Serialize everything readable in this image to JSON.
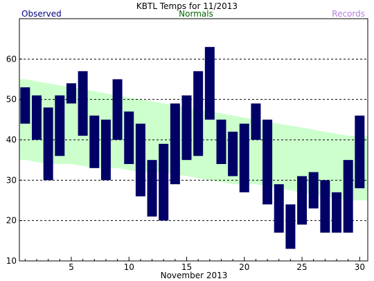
{
  "chart_data": {
    "type": "bar",
    "title": "KBTL Temps for 11/2013",
    "xlabel": "November 2013",
    "ylabel": "",
    "xlim": [
      1,
      30
    ],
    "ylim": [
      10,
      70
    ],
    "yticks": [
      10,
      20,
      30,
      40,
      50,
      60
    ],
    "xticks": [
      5,
      10,
      15,
      20,
      25,
      30
    ],
    "grid": "horizontal dashed at 20, 30, 40, 50, 60",
    "legend": [
      {
        "label": "Observed",
        "color": "#000080",
        "position": "top-left"
      },
      {
        "label": "Normals",
        "color": "#006400",
        "position": "top-center"
      },
      {
        "label": "Records",
        "color": "#b57edc",
        "position": "top-right"
      }
    ],
    "colors": {
      "observed": "#000066",
      "normals": "#ccffcc",
      "grid": "#000000"
    },
    "series": [
      {
        "name": "Observed",
        "days": [
          1,
          2,
          3,
          4,
          5,
          6,
          7,
          8,
          9,
          10,
          11,
          12,
          13,
          14,
          15,
          16,
          17,
          18,
          19,
          20,
          21,
          22,
          23,
          24,
          25,
          26,
          27,
          28,
          29,
          30
        ],
        "high": [
          53,
          51,
          48,
          51,
          54,
          57,
          46,
          45,
          55,
          47,
          44,
          35,
          39,
          49,
          51,
          57,
          63,
          45,
          42,
          44,
          49,
          45,
          29,
          24,
          31,
          32,
          30,
          27,
          35,
          46
        ],
        "low": [
          44,
          40,
          30,
          36,
          49,
          41,
          33,
          30,
          40,
          34,
          26,
          21,
          20,
          29,
          35,
          36,
          45,
          34,
          31,
          27,
          40,
          24,
          17,
          13,
          19,
          23,
          17,
          17,
          17,
          28
        ]
      },
      {
        "name": "Normals",
        "days": [
          1,
          3,
          5,
          7,
          9,
          11,
          13,
          15,
          17,
          19,
          21,
          23,
          25,
          27,
          29,
          30
        ],
        "high": [
          55,
          54,
          53,
          52,
          51,
          50,
          49,
          48,
          47,
          46,
          45,
          44,
          43,
          42,
          41,
          41
        ],
        "low": [
          35,
          34,
          34,
          33,
          33,
          32,
          32,
          31,
          30,
          29,
          29,
          28,
          27,
          26,
          25,
          25
        ]
      }
    ]
  }
}
